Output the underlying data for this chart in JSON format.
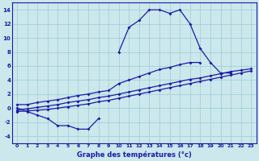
{
  "xlabel": "Graphe des températures (°c)",
  "hours": [
    0,
    1,
    2,
    3,
    4,
    5,
    6,
    7,
    8,
    9,
    10,
    11,
    12,
    13,
    14,
    15,
    16,
    17,
    18,
    19,
    20,
    21,
    22,
    23
  ],
  "curve_main": [
    0.0,
    -0.5,
    -1.0,
    -1.5,
    -2.5,
    -2.5,
    -3.0,
    -3.0,
    -1.5,
    null,
    8.0,
    11.5,
    12.5,
    14.0,
    14.0,
    13.5,
    14.0,
    12.0,
    8.5,
    6.5,
    5.0,
    5.0,
    null,
    null
  ],
  "curve_linear_top": [
    0.5,
    0.5,
    0.8,
    1.0,
    1.2,
    1.5,
    1.8,
    2.0,
    2.3,
    2.5,
    3.5,
    4.0,
    4.5,
    5.0,
    5.5,
    5.8,
    6.2,
    6.5,
    6.5,
    null,
    null,
    null,
    null,
    null
  ],
  "curve_ref_mid": [
    -0.3,
    -0.1,
    0.1,
    0.3,
    0.5,
    0.8,
    1.0,
    1.2,
    1.5,
    1.7,
    2.0,
    2.3,
    2.6,
    2.9,
    3.2,
    3.5,
    3.8,
    4.1,
    4.3,
    4.6,
    4.9,
    5.2,
    5.4,
    5.6
  ],
  "curve_ref_low": [
    -0.5,
    -0.4,
    -0.3,
    -0.2,
    0.0,
    0.2,
    0.4,
    0.6,
    0.9,
    1.1,
    1.4,
    1.7,
    2.0,
    2.3,
    2.6,
    2.9,
    3.2,
    3.5,
    3.8,
    4.1,
    4.4,
    4.7,
    5.0,
    5.3
  ],
  "line_color": "#1a1aaa",
  "bg_color": "#cce8ec",
  "grid_color": "#99ccd4",
  "ylim": [
    -5,
    15
  ],
  "yticks": [
    -4,
    -2,
    0,
    2,
    4,
    6,
    8,
    10,
    12,
    14
  ],
  "xticks": [
    0,
    1,
    2,
    3,
    4,
    5,
    6,
    7,
    8,
    9,
    10,
    11,
    12,
    13,
    14,
    15,
    16,
    17,
    18,
    19,
    20,
    21,
    22,
    23
  ],
  "xlim": [
    -0.5,
    23.5
  ]
}
